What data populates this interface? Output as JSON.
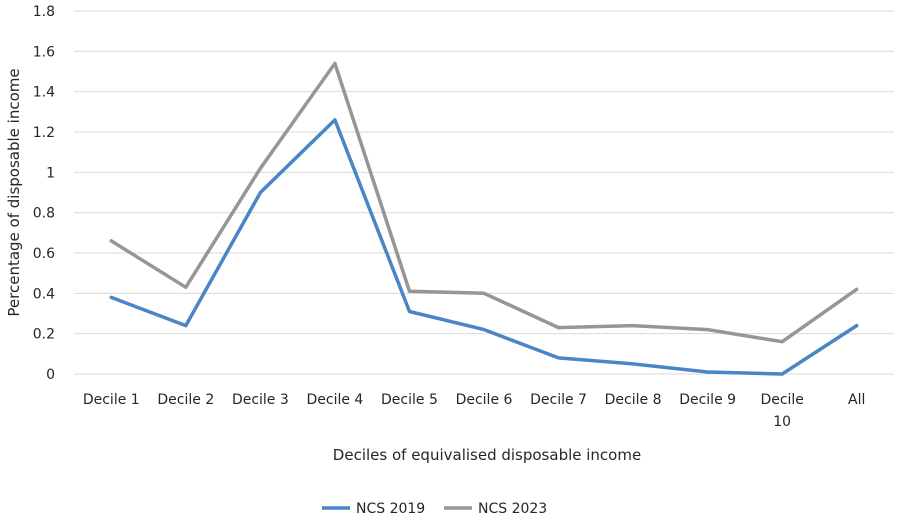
{
  "chart_data": {
    "type": "line",
    "categories": [
      "Decile 1",
      "Decile 2",
      "Decile 3",
      "Decile 4",
      "Decile 5",
      "Decile 6",
      "Decile 7",
      "Decile 8",
      "Decile 9",
      "Decile 10",
      "All"
    ],
    "series": [
      {
        "name": "NCS 2019",
        "color": "#4a86c5",
        "values": [
          0.38,
          0.24,
          0.9,
          1.26,
          0.31,
          0.22,
          0.08,
          0.05,
          0.01,
          0.0,
          0.24
        ]
      },
      {
        "name": "NCS 2023",
        "color": "#969696",
        "values": [
          0.66,
          0.43,
          1.02,
          1.54,
          0.41,
          0.4,
          0.23,
          0.24,
          0.22,
          0.16,
          0.42
        ]
      }
    ],
    "xlabel": "Deciles of equivalised disposable income",
    "ylabel": "Percentage of disposable income",
    "ylim": [
      0,
      1.8
    ],
    "yticks": [
      "0",
      "0.2",
      "0.4",
      "0.6",
      "0.8",
      "1",
      "1.2",
      "1.4",
      "1.6",
      "1.8"
    ],
    "grid": true,
    "legend_position": "bottom"
  }
}
